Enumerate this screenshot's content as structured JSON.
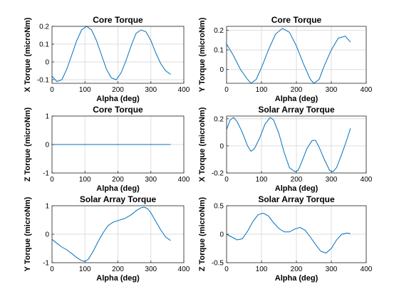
{
  "chart_data": [
    {
      "type": "line",
      "title": "Core Torque",
      "xlabel": "Alpha (deg)",
      "ylabel": "X Torque (microNm)",
      "xlim": [
        0,
        400
      ],
      "ylim": [
        -0.12,
        0.2
      ],
      "xticks": [
        0,
        100,
        200,
        300,
        400
      ],
      "yticks": [
        -0.1,
        0,
        0.1,
        0.2
      ],
      "ytick_labels": [
        "-0.1",
        "0",
        "0.1",
        "0.2"
      ],
      "grid": true,
      "series": [
        {
          "x": [
            0,
            15,
            30,
            45,
            60,
            75,
            90,
            105,
            120,
            135,
            150,
            165,
            180,
            195,
            210,
            225,
            240,
            255,
            270,
            285,
            300,
            315,
            330,
            345,
            360
          ],
          "y": [
            -0.08,
            -0.11,
            -0.1,
            -0.04,
            0.04,
            0.12,
            0.18,
            0.2,
            0.18,
            0.12,
            0.04,
            -0.04,
            -0.09,
            -0.1,
            -0.06,
            0.01,
            0.09,
            0.16,
            0.18,
            0.17,
            0.12,
            0.05,
            -0.01,
            -0.05,
            -0.07
          ]
        }
      ]
    },
    {
      "type": "line",
      "title": "Core Torque",
      "xlabel": "Alpha (deg)",
      "ylabel": "Y Torque (microNm)",
      "xlim": [
        0,
        400
      ],
      "ylim": [
        -0.07,
        0.22
      ],
      "xticks": [
        0,
        100,
        200,
        300,
        400
      ],
      "yticks": [
        0,
        0.1,
        0.2
      ],
      "ytick_labels": [
        "0",
        "0.1",
        "0.2"
      ],
      "grid": true,
      "series": [
        {
          "x": [
            0,
            20,
            40,
            60,
            70,
            85,
            100,
            120,
            140,
            160,
            180,
            200,
            220,
            240,
            250,
            265,
            280,
            300,
            320,
            340,
            355
          ],
          "y": [
            0.13,
            0.07,
            0.0,
            -0.05,
            -0.07,
            -0.05,
            0.01,
            0.1,
            0.18,
            0.21,
            0.19,
            0.12,
            0.03,
            -0.05,
            -0.07,
            -0.05,
            0.02,
            0.1,
            0.16,
            0.17,
            0.14
          ]
        }
      ]
    },
    {
      "type": "line",
      "title": "Core Torque",
      "xlabel": "Alpha (deg)",
      "ylabel": "Z Torque (microNm)",
      "xlim": [
        0,
        400
      ],
      "ylim": [
        -1,
        1
      ],
      "xticks": [
        0,
        100,
        200,
        300,
        400
      ],
      "yticks": [
        -1,
        0,
        1
      ],
      "ytick_labels": [
        "-1",
        "0",
        "1"
      ],
      "grid": true,
      "series": [
        {
          "x": [
            0,
            360
          ],
          "y": [
            0,
            0
          ]
        }
      ]
    },
    {
      "type": "line",
      "title": "Solar Array Torque",
      "xlabel": "Alpha (deg)",
      "ylabel": "X Torque (microNm)",
      "xlim": [
        0,
        400
      ],
      "ylim": [
        -0.2,
        0.22
      ],
      "xticks": [
        0,
        100,
        200,
        300,
        400
      ],
      "yticks": [
        -0.2,
        0,
        0.2
      ],
      "ytick_labels": [
        "-0.2",
        "0",
        "0.2"
      ],
      "grid": true,
      "series": [
        {
          "x": [
            0,
            10,
            20,
            30,
            45,
            60,
            70,
            80,
            95,
            110,
            125,
            135,
            150,
            165,
            180,
            195,
            205,
            215,
            230,
            245,
            255,
            265,
            280,
            295,
            305,
            315,
            330,
            345,
            355
          ],
          "y": [
            0.12,
            0.19,
            0.21,
            0.18,
            0.1,
            0.0,
            -0.04,
            -0.02,
            0.06,
            0.16,
            0.21,
            0.19,
            0.09,
            -0.05,
            -0.16,
            -0.19,
            -0.18,
            -0.12,
            -0.02,
            0.04,
            0.04,
            -0.01,
            -0.1,
            -0.18,
            -0.19,
            -0.16,
            -0.06,
            0.05,
            0.13
          ]
        }
      ]
    },
    {
      "type": "line",
      "title": "Solar Array Torque",
      "xlabel": "Alpha (deg)",
      "ylabel": "Y Torque (microNm)",
      "xlim": [
        0,
        400
      ],
      "ylim": [
        -1,
        1
      ],
      "xticks": [
        0,
        100,
        200,
        300,
        400
      ],
      "yticks": [
        -1,
        0,
        1
      ],
      "ytick_labels": [
        "-1",
        "0",
        "1"
      ],
      "grid": true,
      "series": [
        {
          "x": [
            0,
            15,
            30,
            45,
            60,
            75,
            90,
            100,
            110,
            125,
            140,
            155,
            170,
            185,
            200,
            220,
            240,
            255,
            270,
            280,
            290,
            300,
            315,
            330,
            345,
            360
          ],
          "y": [
            -0.18,
            -0.32,
            -0.45,
            -0.55,
            -0.68,
            -0.82,
            -0.93,
            -0.95,
            -0.88,
            -0.6,
            -0.25,
            0.05,
            0.3,
            0.42,
            0.48,
            0.55,
            0.68,
            0.82,
            0.93,
            0.95,
            0.9,
            0.75,
            0.45,
            0.15,
            -0.1,
            -0.22
          ]
        }
      ]
    },
    {
      "type": "line",
      "title": "Solar Array Torque",
      "xlabel": "Alpha (deg)",
      "ylabel": "Z Torque (microNm)",
      "xlim": [
        0,
        400
      ],
      "ylim": [
        -0.5,
        0.5
      ],
      "xticks": [
        0,
        100,
        200,
        300,
        400
      ],
      "yticks": [
        -0.5,
        0,
        0.5
      ],
      "ytick_labels": [
        "-0.5",
        "0",
        "0.5"
      ],
      "grid": true,
      "series": [
        {
          "x": [
            0,
            15,
            30,
            45,
            60,
            75,
            90,
            105,
            120,
            135,
            150,
            165,
            180,
            195,
            210,
            225,
            240,
            255,
            270,
            285,
            300,
            315,
            330,
            345,
            355
          ],
          "y": [
            0.0,
            -0.05,
            -0.1,
            -0.08,
            0.05,
            0.22,
            0.34,
            0.37,
            0.32,
            0.2,
            0.1,
            0.04,
            0.04,
            0.09,
            0.12,
            0.07,
            -0.05,
            -0.18,
            -0.3,
            -0.33,
            -0.25,
            -0.1,
            0.0,
            0.02,
            0.01
          ]
        }
      ]
    }
  ]
}
